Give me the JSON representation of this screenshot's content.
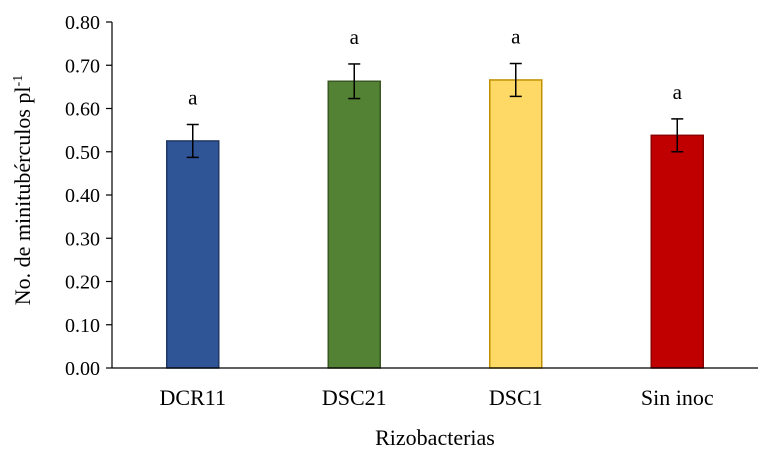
{
  "chart_data": {
    "type": "bar",
    "title": "",
    "xlabel": "Rizobacterias",
    "ylabel": "No. de minitubérculos pl",
    "ylabel_superscript": "-1",
    "ylim": [
      0,
      0.8
    ],
    "yticks": [
      "0.00",
      "0.10",
      "0.20",
      "0.30",
      "0.40",
      "0.50",
      "0.60",
      "0.70",
      "0.80"
    ],
    "tick_step": 0.1,
    "grid": false,
    "categories": [
      "DCR11",
      "DSC21",
      "DSC1",
      "Sin inoc"
    ],
    "values": [
      0.525,
      0.663,
      0.666,
      0.538
    ],
    "error": [
      0.038,
      0.04,
      0.038,
      0.038
    ],
    "significance": [
      "a",
      "a",
      "a",
      "a"
    ],
    "colors": [
      "#2f5597",
      "#548235",
      "#ffd966",
      "#c00000"
    ],
    "edge_colors": [
      "#203864",
      "#385723",
      "#bf9000",
      "#8b0000"
    ]
  }
}
